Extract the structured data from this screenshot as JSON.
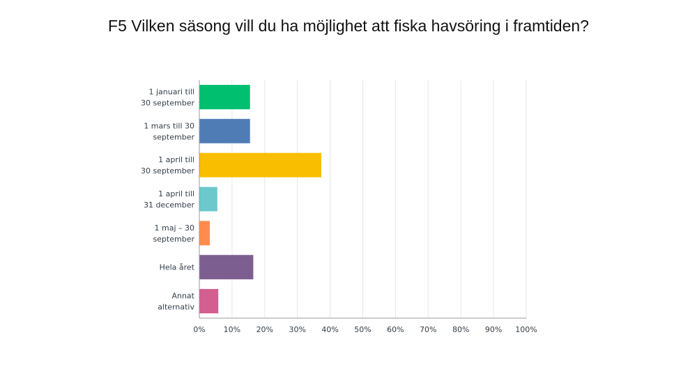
{
  "chart_data": {
    "type": "bar",
    "orientation": "horizontal",
    "title": "F5 Vilken säsong vill du ha möjlighet att fiska havsöring i framtiden?",
    "categories": [
      [
        "1 januari till",
        "30 september"
      ],
      [
        "1 mars till 30",
        "september"
      ],
      [
        "1 april till",
        "30 september"
      ],
      [
        "1 april till",
        "31 december"
      ],
      [
        "1 maj – 30",
        "september"
      ],
      [
        "Hela året"
      ],
      [
        "Annat",
        "alternativ"
      ]
    ],
    "values": [
      15.5,
      15.5,
      37.3,
      5.5,
      3.2,
      16.5,
      5.8
    ],
    "colors": [
      "#00bf6f",
      "#507cb6",
      "#f9be00",
      "#6bc8cd",
      "#ff8b4f",
      "#7d5e90",
      "#d25f90"
    ],
    "xlim": [
      0,
      100
    ],
    "xticks": [
      "0%",
      "10%",
      "20%",
      "30%",
      "40%",
      "50%",
      "60%",
      "70%",
      "80%",
      "90%",
      "100%"
    ],
    "grid": true
  }
}
